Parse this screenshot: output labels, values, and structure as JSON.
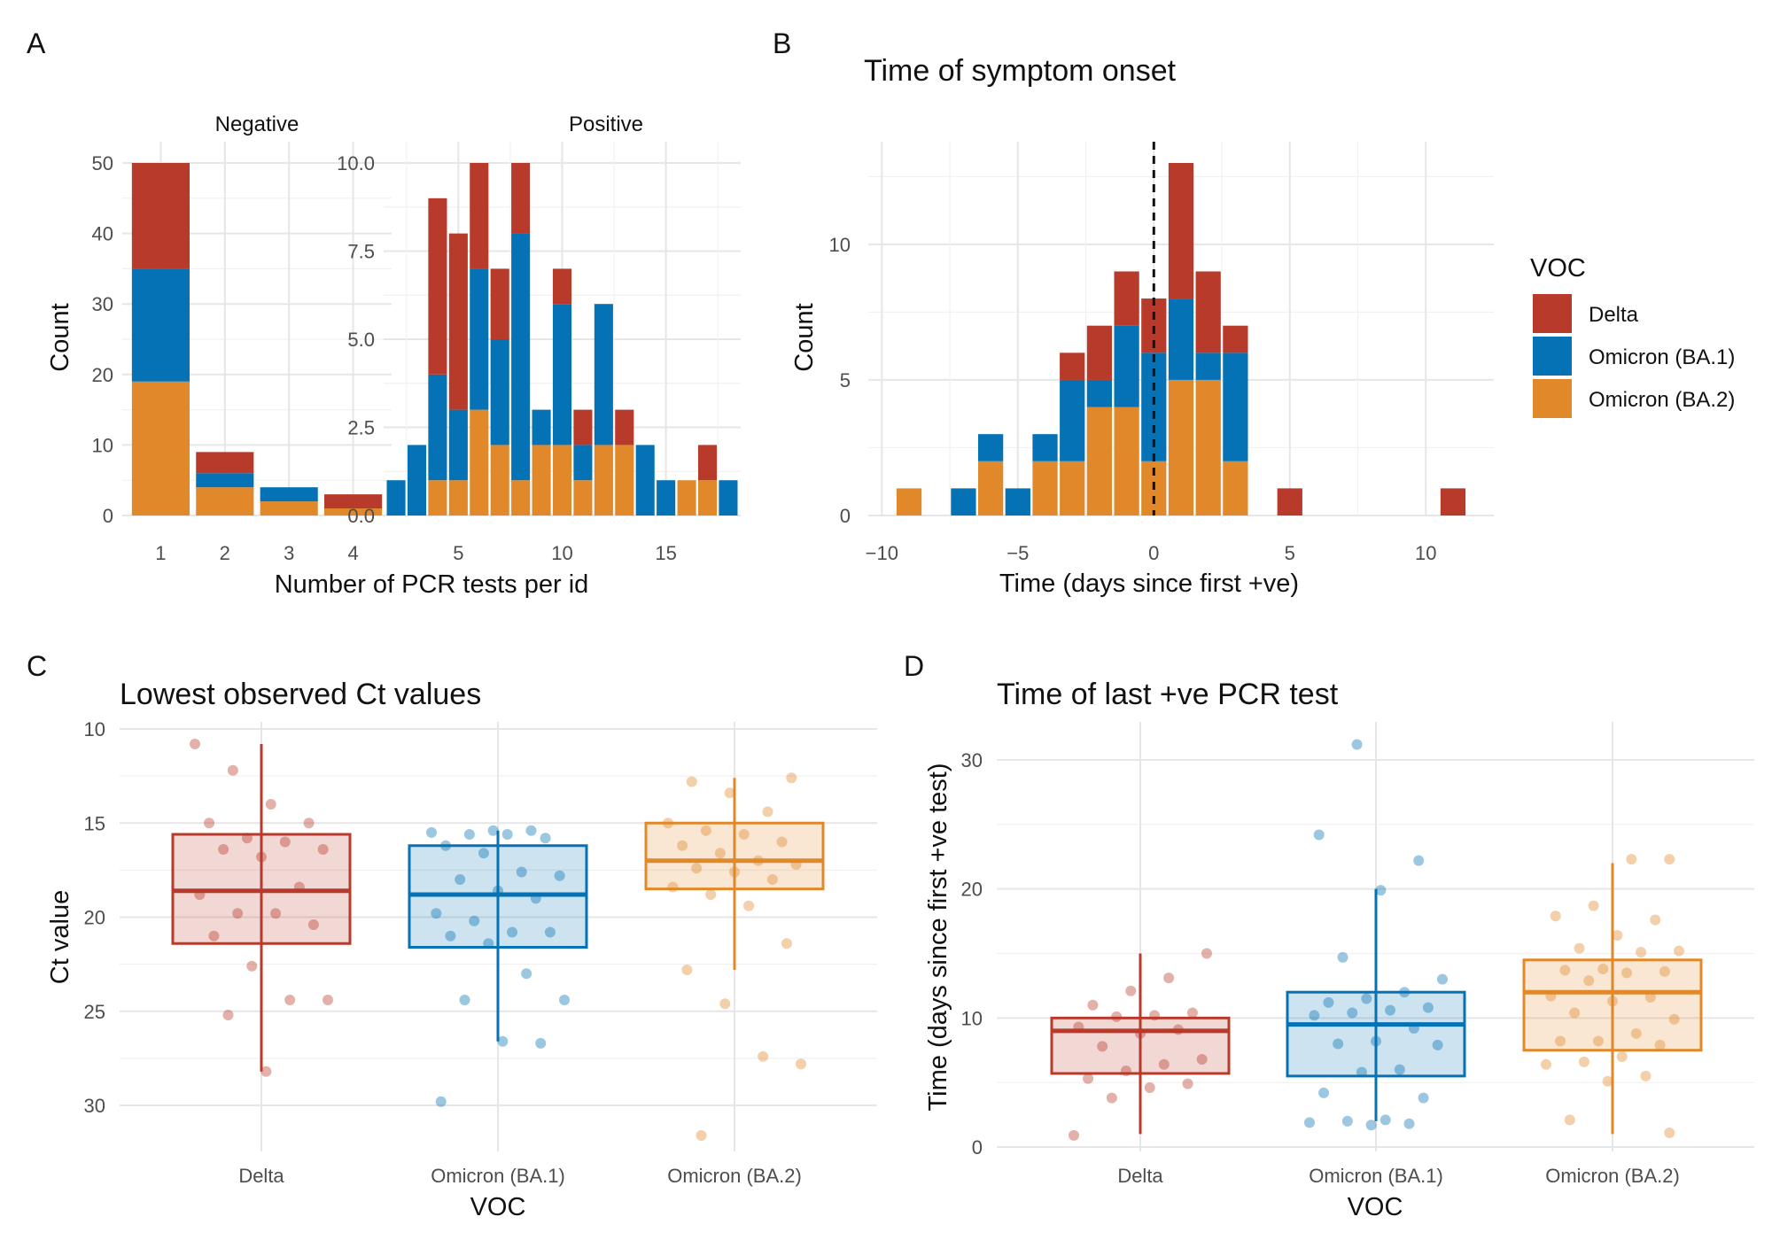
{
  "colors": {
    "Delta": "#b83a2a",
    "Omicron (BA.1)": "#0572b5",
    "Omicron (BA.2)": "#e0882a"
  },
  "legend": {
    "title": "VOC",
    "items": [
      "Delta",
      "Omicron (BA.1)",
      "Omicron (BA.2)"
    ]
  },
  "chart_data": [
    {
      "panel": "A",
      "type": "bar",
      "stacked": true,
      "xlabel": "Number of PCR tests per id",
      "ylabel": "Count",
      "facets": [
        {
          "name": "Negative",
          "x": [
            1,
            2,
            3,
            4
          ],
          "x_ticks": [
            1,
            2,
            3,
            4
          ],
          "ylim": [
            0,
            50
          ],
          "y_ticks": [
            0,
            10,
            20,
            30,
            40,
            50
          ],
          "y_tick_labels": [
            "0",
            "10",
            "20",
            "30",
            "40",
            "50"
          ],
          "series": [
            {
              "name": "Omicron (BA.2)",
              "values": [
                19,
                4,
                2,
                1
              ]
            },
            {
              "name": "Omicron (BA.1)",
              "values": [
                16,
                2,
                2,
                0
              ]
            },
            {
              "name": "Delta",
              "values": [
                15,
                3,
                0,
                2
              ]
            }
          ]
        },
        {
          "name": "Positive",
          "x": [
            2,
            3,
            4,
            5,
            6,
            7,
            8,
            9,
            10,
            11,
            12,
            13,
            14,
            15,
            16,
            17,
            18
          ],
          "x_ticks": [
            5,
            10,
            15
          ],
          "ylim": [
            0,
            10
          ],
          "y_ticks": [
            0,
            2.5,
            5,
            7.5,
            10
          ],
          "y_tick_labels": [
            "0.0",
            "2.5",
            "5.0",
            "7.5",
            "10.0"
          ],
          "series": [
            {
              "name": "Omicron (BA.2)",
              "values": [
                0,
                0,
                1,
                1,
                3,
                2,
                1,
                2,
                2,
                1,
                2,
                2,
                0,
                0,
                1,
                1,
                0
              ]
            },
            {
              "name": "Omicron (BA.1)",
              "values": [
                1,
                2,
                3,
                2,
                4,
                3,
                7,
                1,
                4,
                1,
                4,
                0,
                2,
                1,
                0,
                0,
                1
              ]
            },
            {
              "name": "Delta",
              "values": [
                0,
                0,
                5,
                5,
                3,
                2,
                2,
                0,
                1,
                1,
                0,
                1,
                0,
                0,
                0,
                1,
                0
              ]
            }
          ]
        }
      ]
    },
    {
      "panel": "B",
      "type": "bar",
      "stacked": true,
      "title": "Time of symptom onset",
      "xlabel": "Time (days since first +ve)",
      "ylabel": "Count",
      "xlim": [
        -10,
        12
      ],
      "x_ticks": [
        -10,
        -5,
        0,
        5,
        10
      ],
      "x_tick_labels": [
        "−10",
        "−5",
        "0",
        "5",
        "10"
      ],
      "ylim": [
        0,
        13
      ],
      "y_ticks": [
        0,
        5,
        10
      ],
      "reference_line_x": 0,
      "x": [
        -9,
        -7,
        -6,
        -5,
        -4,
        -3,
        -2,
        -1,
        0,
        1,
        2,
        3,
        5,
        11
      ],
      "series": [
        {
          "name": "Omicron (BA.2)",
          "values": [
            1,
            0,
            2,
            0,
            2,
            2,
            4,
            4,
            2,
            5,
            5,
            2,
            0,
            0
          ]
        },
        {
          "name": "Omicron (BA.1)",
          "values": [
            0,
            1,
            1,
            1,
            1,
            3,
            1,
            3,
            4,
            3,
            1,
            4,
            0,
            0
          ]
        },
        {
          "name": "Delta",
          "values": [
            0,
            0,
            0,
            0,
            0,
            1,
            2,
            2,
            2,
            5,
            3,
            1,
            1,
            1
          ]
        }
      ]
    },
    {
      "panel": "C",
      "type": "box",
      "title": "Lowest observed Ct values",
      "xlabel": "VOC",
      "ylabel": "Ct value",
      "y_reversed": true,
      "ylim": [
        10,
        32.5
      ],
      "y_ticks": [
        10,
        15,
        20,
        25,
        30
      ],
      "categories": [
        "Delta",
        "Omicron (BA.1)",
        "Omicron (BA.2)"
      ],
      "boxes": [
        {
          "q1": 15.6,
          "median": 18.6,
          "q3": 21.4,
          "whisker_low": 10.8,
          "whisker_high": 28.2
        },
        {
          "q1": 16.2,
          "median": 18.8,
          "q3": 21.6,
          "whisker_low": 15.4,
          "whisker_high": 26.6
        },
        {
          "q1": 15.0,
          "median": 17.0,
          "q3": 18.5,
          "whisker_low": 12.6,
          "whisker_high": 22.8
        }
      ],
      "points": [
        [
          10.8,
          12.2,
          14.0,
          15.0,
          15.0,
          15.8,
          16.0,
          16.4,
          16.4,
          16.8,
          18.4,
          18.8,
          19.8,
          19.8,
          20.4,
          21.0,
          22.6,
          24.4,
          24.4,
          25.2,
          28.2
        ],
        [
          15.4,
          15.4,
          15.5,
          15.6,
          15.6,
          15.8,
          16.2,
          16.6,
          17.6,
          17.8,
          18.0,
          18.6,
          19.0,
          19.8,
          20.2,
          20.8,
          20.8,
          21.0,
          21.4,
          23.0,
          24.4,
          24.4,
          26.6,
          26.7,
          29.8
        ],
        [
          12.6,
          12.8,
          13.4,
          14.4,
          15.0,
          15.4,
          15.6,
          16.0,
          16.2,
          16.6,
          17.0,
          17.2,
          17.4,
          17.6,
          18.0,
          18.4,
          18.8,
          19.4,
          21.4,
          22.8,
          24.6,
          27.4,
          27.8,
          31.6
        ]
      ]
    },
    {
      "panel": "D",
      "type": "box",
      "title": "Time of last +ve PCR test",
      "xlabel": "VOC",
      "ylabel": "Time (days since first +ve test)",
      "ylim": [
        -0.5,
        31.5
      ],
      "y_ticks": [
        0,
        10,
        20,
        30
      ],
      "categories": [
        "Delta",
        "Omicron (BA.1)",
        "Omicron (BA.2)"
      ],
      "boxes": [
        {
          "q1": 5.7,
          "median": 9.0,
          "q3": 10.0,
          "whisker_low": 1.0,
          "whisker_high": 15.0
        },
        {
          "q1": 5.5,
          "median": 9.5,
          "q3": 12.0,
          "whisker_low": 2.0,
          "whisker_high": 20.0
        },
        {
          "q1": 7.5,
          "median": 12.0,
          "q3": 14.5,
          "whisker_low": 1.0,
          "whisker_high": 22.0
        }
      ],
      "points": [
        [
          0.9,
          3.8,
          4.6,
          4.9,
          5.3,
          5.9,
          6.4,
          6.8,
          7.8,
          8.8,
          9.1,
          9.3,
          10.1,
          10.2,
          10.4,
          11.0,
          12.1,
          13.1,
          15.0
        ],
        [
          1.7,
          1.8,
          1.9,
          2.0,
          2.1,
          3.8,
          4.2,
          5.8,
          6.0,
          7.9,
          8.0,
          8.2,
          9.2,
          10.2,
          10.4,
          10.6,
          10.8,
          11.2,
          11.5,
          12.0,
          13.0,
          14.7,
          19.9,
          22.2,
          24.2,
          31.2
        ],
        [
          1.1,
          2.1,
          5.1,
          5.5,
          6.4,
          6.6,
          7.0,
          7.9,
          8.2,
          8.2,
          8.8,
          9.9,
          10.4,
          11.3,
          11.6,
          11.7,
          12.9,
          13.5,
          13.6,
          13.7,
          13.8,
          15.1,
          15.2,
          15.4,
          16.4,
          17.6,
          17.9,
          18.7,
          22.3,
          22.3
        ]
      ]
    }
  ]
}
